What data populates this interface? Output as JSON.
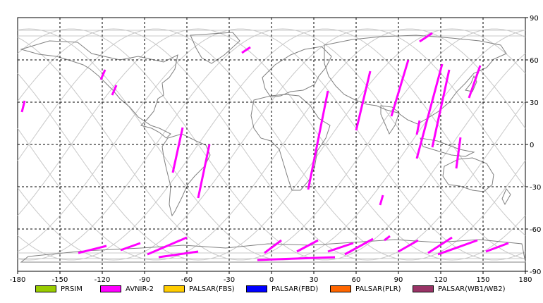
{
  "map": {
    "x_ticks": [
      "-180",
      "-150",
      "-120",
      "-90",
      "-60",
      "-30",
      "0",
      "30",
      "60",
      "90",
      "120",
      "150",
      "180"
    ],
    "y_ticks": [
      "90",
      "60",
      "30",
      "0",
      "-30",
      "-60",
      "-90"
    ]
  },
  "legend": [
    {
      "label": "PRSIM",
      "color": "#99cc00"
    },
    {
      "label": "AVNIR-2",
      "color": "#ff00ff"
    },
    {
      "label": "PALSAR(FBS)",
      "color": "#ffcc00"
    },
    {
      "label": "PALSAR(FBD)",
      "color": "#0000ff"
    },
    {
      "label": "PALSAR(PLR)",
      "color": "#ff6600"
    },
    {
      "label": "PALSAR(WB1/WB2)",
      "color": "#993366"
    }
  ],
  "swaths": [
    {
      "sensor": "AVNIR-2",
      "lon1": -177,
      "lat1": 23,
      "lon2": -175,
      "lat2": 31
    },
    {
      "sensor": "AVNIR-2",
      "lon1": -121,
      "lat1": 46,
      "lon2": -118,
      "lat2": 53
    },
    {
      "sensor": "AVNIR-2",
      "lon1": -113,
      "lat1": 35,
      "lon2": -110,
      "lat2": 42
    },
    {
      "sensor": "AVNIR-2",
      "lon1": -21,
      "lat1": 65,
      "lon2": -15,
      "lat2": 69
    },
    {
      "sensor": "AVNIR-2",
      "lon1": -70,
      "lat1": -20,
      "lon2": -63,
      "lat2": 12
    },
    {
      "sensor": "AVNIR-2",
      "lon1": -52,
      "lat1": -38,
      "lon2": -44,
      "lat2": 0
    },
    {
      "sensor": "AVNIR-2",
      "lon1": 26,
      "lat1": -32,
      "lon2": 40,
      "lat2": 38
    },
    {
      "sensor": "AVNIR-2",
      "lon1": 60,
      "lat1": 10,
      "lon2": 70,
      "lat2": 52
    },
    {
      "sensor": "AVNIR-2",
      "lon1": 85,
      "lat1": 20,
      "lon2": 97,
      "lat2": 60
    },
    {
      "sensor": "AVNIR-2",
      "lon1": 103,
      "lat1": -10,
      "lon2": 121,
      "lat2": 57
    },
    {
      "sensor": "AVNIR-2",
      "lon1": 114,
      "lat1": -2,
      "lon2": 126,
      "lat2": 53
    },
    {
      "sensor": "AVNIR-2",
      "lon1": 140,
      "lat1": 33,
      "lon2": 148,
      "lat2": 56
    },
    {
      "sensor": "AVNIR-2",
      "lon1": 131,
      "lat1": -17,
      "lon2": 134,
      "lat2": 5
    },
    {
      "sensor": "AVNIR-2",
      "lon1": 77,
      "lat1": -43,
      "lon2": 79,
      "lat2": -36
    },
    {
      "sensor": "AVNIR-2",
      "lon1": 103,
      "lat1": 7,
      "lon2": 105,
      "lat2": 17
    },
    {
      "sensor": "AVNIR-2",
      "lon1": 105,
      "lat1": 73,
      "lon2": 114,
      "lat2": 79
    },
    {
      "sensor": "AVNIR-2",
      "lon1": -137,
      "lat1": -77,
      "lon2": -117,
      "lat2": -72
    },
    {
      "sensor": "AVNIR-2",
      "lon1": -107,
      "lat1": -75,
      "lon2": -93,
      "lat2": -70
    },
    {
      "sensor": "AVNIR-2",
      "lon1": -88,
      "lat1": -78,
      "lon2": -60,
      "lat2": -66
    },
    {
      "sensor": "AVNIR-2",
      "lon1": -80,
      "lat1": -80,
      "lon2": -52,
      "lat2": -76
    },
    {
      "sensor": "AVNIR-2",
      "lon1": -10,
      "lat1": -82,
      "lon2": 45,
      "lat2": -80
    },
    {
      "sensor": "AVNIR-2",
      "lon1": -5,
      "lat1": -77,
      "lon2": 7,
      "lat2": -68
    },
    {
      "sensor": "AVNIR-2",
      "lon1": 18,
      "lat1": -76,
      "lon2": 33,
      "lat2": -68
    },
    {
      "sensor": "AVNIR-2",
      "lon1": 40,
      "lat1": -76,
      "lon2": 58,
      "lat2": -70
    },
    {
      "sensor": "AVNIR-2",
      "lon1": 52,
      "lat1": -78,
      "lon2": 72,
      "lat2": -67
    },
    {
      "sensor": "AVNIR-2",
      "lon1": 80,
      "lat1": -68,
      "lon2": 84,
      "lat2": -65
    },
    {
      "sensor": "AVNIR-2",
      "lon1": 90,
      "lat1": -76,
      "lon2": 104,
      "lat2": -68
    },
    {
      "sensor": "AVNIR-2",
      "lon1": 111,
      "lat1": -77,
      "lon2": 128,
      "lat2": -66
    },
    {
      "sensor": "AVNIR-2",
      "lon1": 118,
      "lat1": -78,
      "lon2": 146,
      "lat2": -68
    },
    {
      "sensor": "AVNIR-2",
      "lon1": 152,
      "lat1": -76,
      "lon2": 168,
      "lat2": -70
    }
  ]
}
